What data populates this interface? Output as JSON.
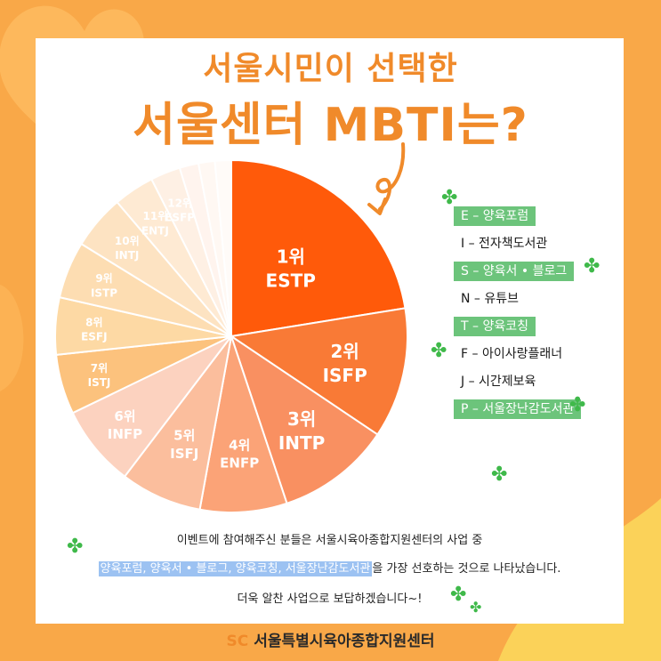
{
  "title": {
    "line1": "서울시민이 선택한",
    "line2": "서울센터 MBTI는?"
  },
  "chart_data": {
    "type": "pie",
    "slices": [
      {
        "rank": "1위",
        "type": "ESTP",
        "color": "#FF5A0A"
      },
      {
        "rank": "2위",
        "type": "ISFP",
        "color": "#F97A36"
      },
      {
        "rank": "3위",
        "type": "INTP",
        "color": "#F99061"
      },
      {
        "rank": "4위",
        "type": "ENFP",
        "color": "#FBA377"
      },
      {
        "rank": "5위",
        "type": "ISFJ",
        "color": "#FBBE9D"
      },
      {
        "rank": "6위",
        "type": "INFP",
        "color": "#FCD2BF"
      },
      {
        "rank": "7위",
        "type": "ISTJ",
        "color": "#FCC27D"
      },
      {
        "rank": "8위",
        "type": "ESFJ",
        "color": "#FDD9A4"
      },
      {
        "rank": "9위",
        "type": "ISTP",
        "color": "#FDDDB2"
      },
      {
        "rank": "10위",
        "type": "INTJ",
        "color": "#FDE3C2"
      },
      {
        "rank": "11위",
        "type": "ENTJ",
        "color": "#FEEAD3"
      },
      {
        "rank": "12위",
        "type": "ESFP",
        "color": "#FEF0E4"
      },
      {
        "rank": "",
        "type": "",
        "color": "#FFF4EE"
      },
      {
        "rank": "",
        "type": "",
        "color": "#FFF8F3"
      },
      {
        "rank": "",
        "type": "",
        "color": "#FFFBF8"
      }
    ]
  },
  "legend": [
    {
      "text": "E – 양육포럼",
      "highlight": true
    },
    {
      "text": "I – 전자책도서관",
      "highlight": false
    },
    {
      "text": "S – 양육서 • 블로그",
      "highlight": true
    },
    {
      "text": "N – 유튜브",
      "highlight": false
    },
    {
      "text": "T – 양육코칭",
      "highlight": true
    },
    {
      "text": "F – 아이사랑플래너",
      "highlight": false
    },
    {
      "text": "J – 시간제보육",
      "highlight": false
    },
    {
      "text": "P – 서울장난감도서관",
      "highlight": true
    }
  ],
  "note": {
    "line1": "이벤트에 참여해주신 분들은 서울시육아종합지원센터의 사업 중",
    "line2_highlight": "양육포럼, 양육서 • 블로그, 양육코칭, 서울장난감도서관",
    "line2_rest": "을 가장 선호하는 것으로 나타났습니다.",
    "line3": "더욱 알찬 사업으로 보답하겠습니다~!"
  },
  "footer": {
    "logo": "SC",
    "org": "서울특별시육아종합지원센터"
  }
}
